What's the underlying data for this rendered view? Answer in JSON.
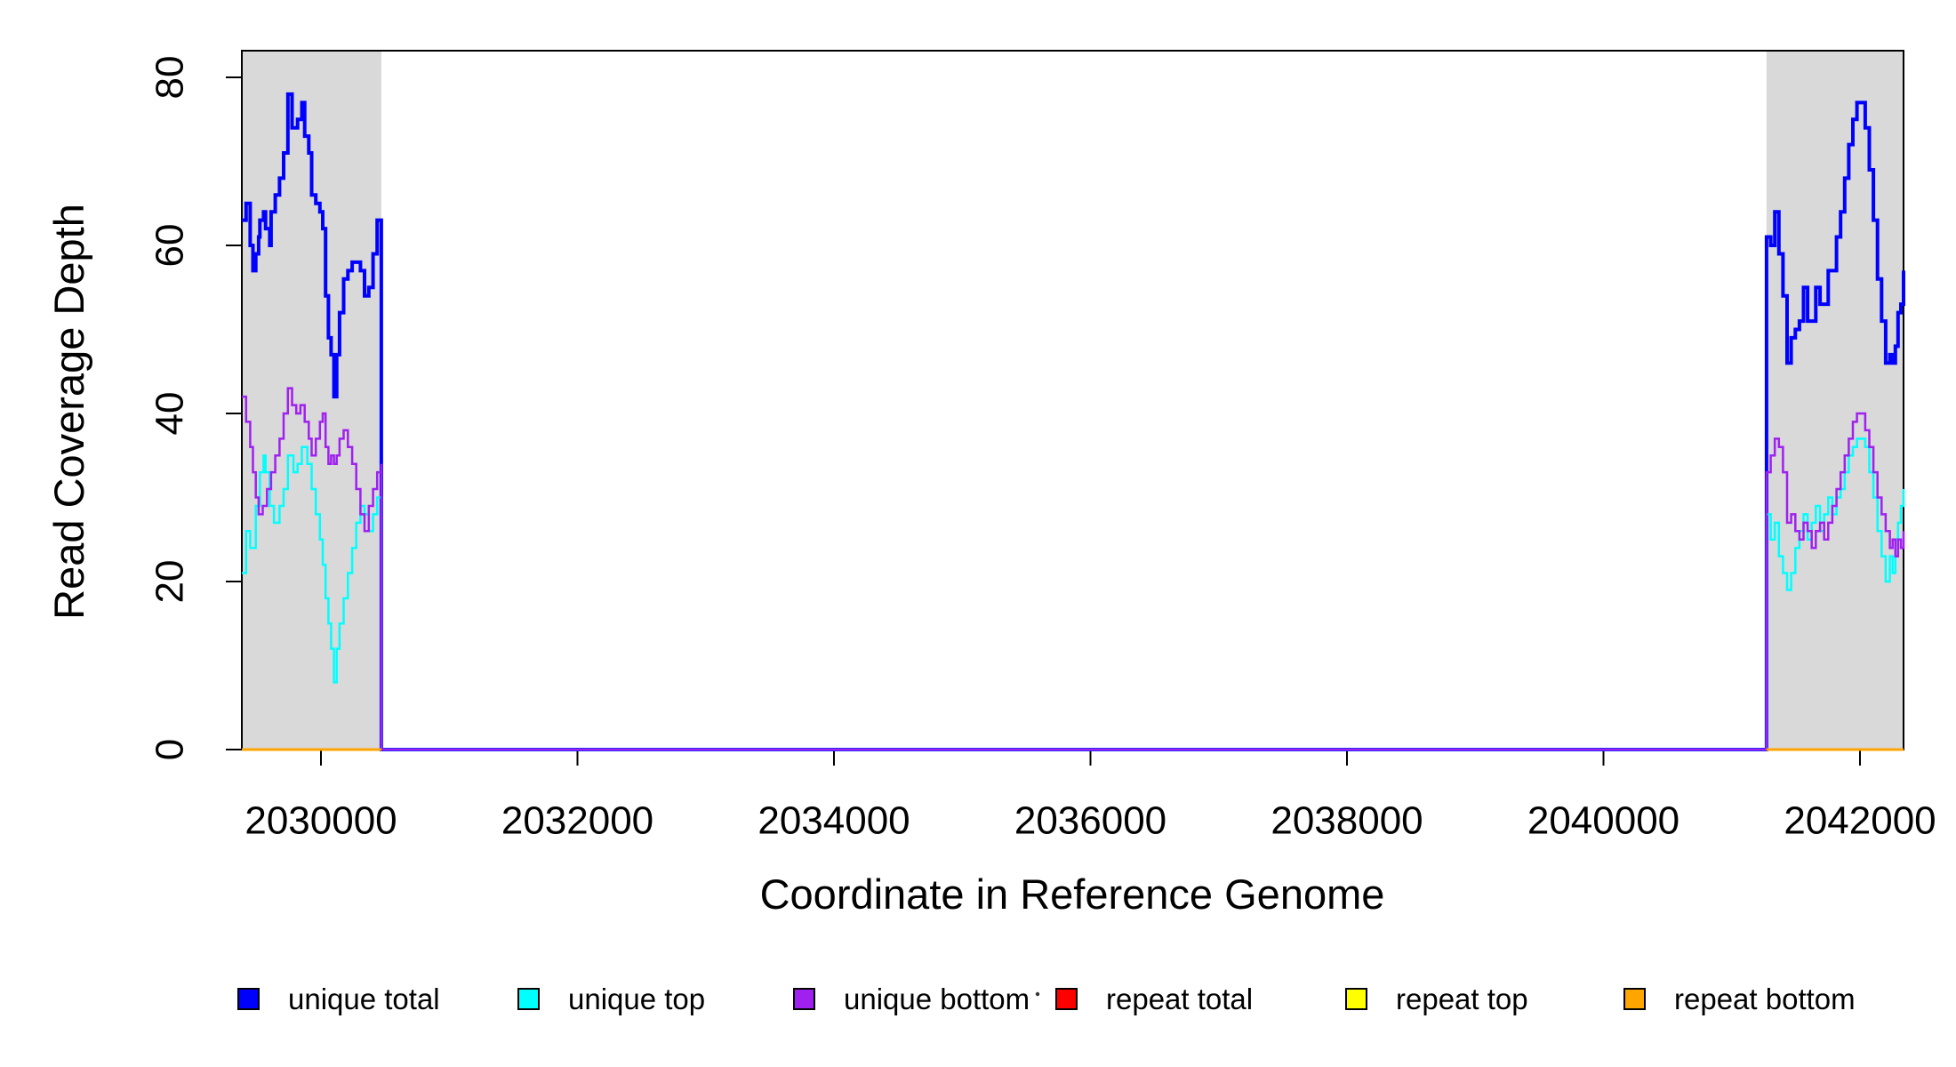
{
  "chart_data": {
    "type": "line",
    "title": "",
    "xlabel": "Coordinate in Reference Genome",
    "ylabel": "Read Coverage Depth",
    "x_axis": {
      "range": [
        2029383,
        2042340
      ],
      "ticks": [
        2030000,
        2032000,
        2034000,
        2036000,
        2038000,
        2040000,
        2042000
      ]
    },
    "y_axis": {
      "range": [
        0,
        83
      ],
      "ticks": [
        0,
        20,
        40,
        60,
        80
      ]
    },
    "grid": "off",
    "plot_border_color": "#000000",
    "region_fill_color": "#D9D9D9",
    "shaded_regions": [
      {
        "x0": 2029383,
        "x1": 2030471
      },
      {
        "x0": 2041272,
        "x1": 2042340
      }
    ],
    "series": [
      {
        "name": "unique total",
        "color": "#0000FF",
        "line_width": 4,
        "segments": [
          [
            [
              2029383,
              63
            ],
            [
              2029416,
              65
            ],
            [
              2029448,
              60
            ],
            [
              2029470,
              57
            ],
            [
              2029492,
              59
            ],
            [
              2029514,
              61
            ],
            [
              2029524,
              63
            ],
            [
              2029552,
              64
            ],
            [
              2029568,
              62
            ],
            [
              2029601,
              60
            ],
            [
              2029611,
              64
            ],
            [
              2029644,
              66
            ],
            [
              2029677,
              68
            ],
            [
              2029709,
              71
            ],
            [
              2029742,
              78
            ],
            [
              2029775,
              74
            ],
            [
              2029818,
              75
            ],
            [
              2029851,
              77
            ],
            [
              2029873,
              73
            ],
            [
              2029894,
              73
            ],
            [
              2029905,
              71
            ],
            [
              2029927,
              66
            ],
            [
              2029960,
              65
            ],
            [
              2029992,
              64
            ],
            [
              2030014,
              62
            ],
            [
              2030036,
              54
            ],
            [
              2030058,
              49
            ],
            [
              2030079,
              47
            ],
            [
              2030101,
              42
            ],
            [
              2030123,
              47
            ],
            [
              2030145,
              52
            ],
            [
              2030177,
              56
            ],
            [
              2030210,
              57
            ],
            [
              2030243,
              58
            ],
            [
              2030275,
              58
            ],
            [
              2030308,
              57
            ],
            [
              2030340,
              54
            ],
            [
              2030373,
              55
            ],
            [
              2030406,
              59
            ],
            [
              2030438,
              63
            ],
            [
              2030471,
              60
            ],
            [
              2030471,
              0
            ],
            [
              2041272,
              0
            ],
            [
              2041272,
              61
            ],
            [
              2041304,
              60
            ],
            [
              2041336,
              64
            ],
            [
              2041368,
              59
            ],
            [
              2041400,
              54
            ],
            [
              2041432,
              46
            ],
            [
              2041464,
              49
            ],
            [
              2041496,
              50
            ],
            [
              2041528,
              51
            ],
            [
              2041560,
              55
            ],
            [
              2041592,
              51
            ],
            [
              2041624,
              51
            ],
            [
              2041656,
              55
            ],
            [
              2041689,
              53
            ],
            [
              2041721,
              53
            ],
            [
              2041753,
              57
            ],
            [
              2041785,
              57
            ],
            [
              2041817,
              61
            ],
            [
              2041849,
              64
            ],
            [
              2041881,
              68
            ],
            [
              2041913,
              72
            ],
            [
              2041945,
              75
            ],
            [
              2041977,
              77
            ],
            [
              2042009,
              77
            ],
            [
              2042041,
              74
            ],
            [
              2042073,
              69
            ],
            [
              2042105,
              63
            ],
            [
              2042137,
              56
            ],
            [
              2042169,
              51
            ],
            [
              2042201,
              46
            ],
            [
              2042233,
              47
            ],
            [
              2042255,
              46
            ],
            [
              2042276,
              48
            ],
            [
              2042297,
              52
            ],
            [
              2042319,
              53
            ],
            [
              2042340,
              57
            ]
          ]
        ]
      },
      {
        "name": "unique top",
        "color": "#00FFFF",
        "line_width": 2.5,
        "segments": [
          [
            [
              2029383,
              21
            ],
            [
              2029416,
              26
            ],
            [
              2029448,
              24
            ],
            [
              2029492,
              29
            ],
            [
              2029524,
              33
            ],
            [
              2029552,
              35
            ],
            [
              2029568,
              33
            ],
            [
              2029601,
              29
            ],
            [
              2029633,
              27
            ],
            [
              2029677,
              29
            ],
            [
              2029709,
              31
            ],
            [
              2029742,
              35
            ],
            [
              2029786,
              33
            ],
            [
              2029818,
              34
            ],
            [
              2029851,
              36
            ],
            [
              2029894,
              34
            ],
            [
              2029927,
              31
            ],
            [
              2029960,
              28
            ],
            [
              2029992,
              25
            ],
            [
              2030014,
              22
            ],
            [
              2030036,
              18
            ],
            [
              2030058,
              15
            ],
            [
              2030079,
              12
            ],
            [
              2030101,
              8
            ],
            [
              2030123,
              12
            ],
            [
              2030145,
              15
            ],
            [
              2030177,
              18
            ],
            [
              2030210,
              21
            ],
            [
              2030243,
              24
            ],
            [
              2030275,
              27
            ],
            [
              2030308,
              29
            ],
            [
              2030340,
              28
            ],
            [
              2030373,
              26
            ],
            [
              2030406,
              28
            ],
            [
              2030438,
              30
            ],
            [
              2030471,
              26
            ],
            [
              2030471,
              0
            ],
            [
              2041272,
              0
            ],
            [
              2041272,
              28
            ],
            [
              2041304,
              25
            ],
            [
              2041336,
              27
            ],
            [
              2041368,
              23
            ],
            [
              2041400,
              21
            ],
            [
              2041432,
              19
            ],
            [
              2041464,
              21
            ],
            [
              2041496,
              24
            ],
            [
              2041528,
              26
            ],
            [
              2041560,
              28
            ],
            [
              2041592,
              25
            ],
            [
              2041624,
              27
            ],
            [
              2041656,
              29
            ],
            [
              2041689,
              26
            ],
            [
              2041721,
              28
            ],
            [
              2041753,
              30
            ],
            [
              2041785,
              28
            ],
            [
              2041817,
              30
            ],
            [
              2041849,
              31
            ],
            [
              2041881,
              33
            ],
            [
              2041913,
              35
            ],
            [
              2041945,
              36
            ],
            [
              2041977,
              37
            ],
            [
              2042009,
              37
            ],
            [
              2042041,
              36
            ],
            [
              2042073,
              33
            ],
            [
              2042105,
              30
            ],
            [
              2042137,
              26
            ],
            [
              2042169,
              23
            ],
            [
              2042201,
              20
            ],
            [
              2042233,
              23
            ],
            [
              2042255,
              21
            ],
            [
              2042276,
              25
            ],
            [
              2042297,
              27
            ],
            [
              2042319,
              29
            ],
            [
              2042340,
              31
            ]
          ]
        ]
      },
      {
        "name": "unique bottom",
        "color": "#A020F0",
        "line_width": 2.5,
        "segments": [
          [
            [
              2029383,
              42
            ],
            [
              2029416,
              39
            ],
            [
              2029448,
              36
            ],
            [
              2029470,
              33
            ],
            [
              2029492,
              30
            ],
            [
              2029514,
              28
            ],
            [
              2029546,
              29
            ],
            [
              2029579,
              31
            ],
            [
              2029611,
              33
            ],
            [
              2029644,
              35
            ],
            [
              2029677,
              37
            ],
            [
              2029709,
              40
            ],
            [
              2029742,
              43
            ],
            [
              2029775,
              41
            ],
            [
              2029807,
              40
            ],
            [
              2029840,
              41
            ],
            [
              2029873,
              39
            ],
            [
              2029905,
              37
            ],
            [
              2029927,
              35
            ],
            [
              2029960,
              37
            ],
            [
              2029992,
              39
            ],
            [
              2030014,
              40
            ],
            [
              2030036,
              36
            ],
            [
              2030058,
              34
            ],
            [
              2030079,
              35
            ],
            [
              2030101,
              34
            ],
            [
              2030123,
              35
            ],
            [
              2030145,
              37
            ],
            [
              2030177,
              38
            ],
            [
              2030210,
              36
            ],
            [
              2030243,
              34
            ],
            [
              2030275,
              31
            ],
            [
              2030308,
              28
            ],
            [
              2030340,
              26
            ],
            [
              2030373,
              29
            ],
            [
              2030406,
              31
            ],
            [
              2030438,
              33
            ],
            [
              2030471,
              34
            ],
            [
              2030471,
              0
            ],
            [
              2041272,
              0
            ],
            [
              2041272,
              33
            ],
            [
              2041304,
              35
            ],
            [
              2041336,
              37
            ],
            [
              2041368,
              36
            ],
            [
              2041400,
              33
            ],
            [
              2041432,
              27
            ],
            [
              2041464,
              28
            ],
            [
              2041496,
              26
            ],
            [
              2041528,
              25
            ],
            [
              2041560,
              27
            ],
            [
              2041592,
              26
            ],
            [
              2041624,
              24
            ],
            [
              2041656,
              26
            ],
            [
              2041689,
              27
            ],
            [
              2041721,
              25
            ],
            [
              2041753,
              27
            ],
            [
              2041785,
              29
            ],
            [
              2041817,
              31
            ],
            [
              2041849,
              33
            ],
            [
              2041881,
              35
            ],
            [
              2041913,
              37
            ],
            [
              2041945,
              39
            ],
            [
              2041977,
              40
            ],
            [
              2042009,
              40
            ],
            [
              2042041,
              38
            ],
            [
              2042073,
              36
            ],
            [
              2042105,
              33
            ],
            [
              2042137,
              30
            ],
            [
              2042169,
              28
            ],
            [
              2042201,
              26
            ],
            [
              2042233,
              24
            ],
            [
              2042255,
              25
            ],
            [
              2042276,
              23
            ],
            [
              2042297,
              25
            ],
            [
              2042319,
              24
            ],
            [
              2042340,
              26
            ]
          ]
        ]
      },
      {
        "name": "repeat total",
        "color": "#FF0000",
        "line_width": 2.5,
        "segments": [
          [
            [
              2029383,
              0
            ],
            [
              2030471,
              0
            ]
          ],
          [
            [
              2041272,
              0
            ],
            [
              2042340,
              0
            ]
          ]
        ]
      },
      {
        "name": "repeat top",
        "color": "#FFFF00",
        "line_width": 2.5,
        "segments": [
          [
            [
              2029383,
              0
            ],
            [
              2030471,
              0
            ]
          ],
          [
            [
              2041272,
              0
            ],
            [
              2042340,
              0
            ]
          ]
        ]
      },
      {
        "name": "repeat bottom",
        "color": "#FFA500",
        "line_width": 3,
        "segments": [
          [
            [
              2029383,
              0
            ],
            [
              2030471,
              0
            ]
          ],
          [
            [
              2041272,
              0
            ],
            [
              2042340,
              0
            ]
          ]
        ]
      }
    ],
    "legend": {
      "position": "bottom",
      "items": [
        {
          "label": "unique total",
          "color": "#0000FF"
        },
        {
          "label": "unique top",
          "color": "#00FFFF"
        },
        {
          "label": "unique bottom",
          "color": "#A020F0"
        },
        {
          "label": "repeat total",
          "color": "#FF0000"
        },
        {
          "label": "repeat top",
          "color": "#FFFF00"
        },
        {
          "label": "repeat bottom",
          "color": "#FFA500"
        }
      ]
    },
    "artifact_dot": {
      "x": 1167,
      "y": 1118
    }
  }
}
